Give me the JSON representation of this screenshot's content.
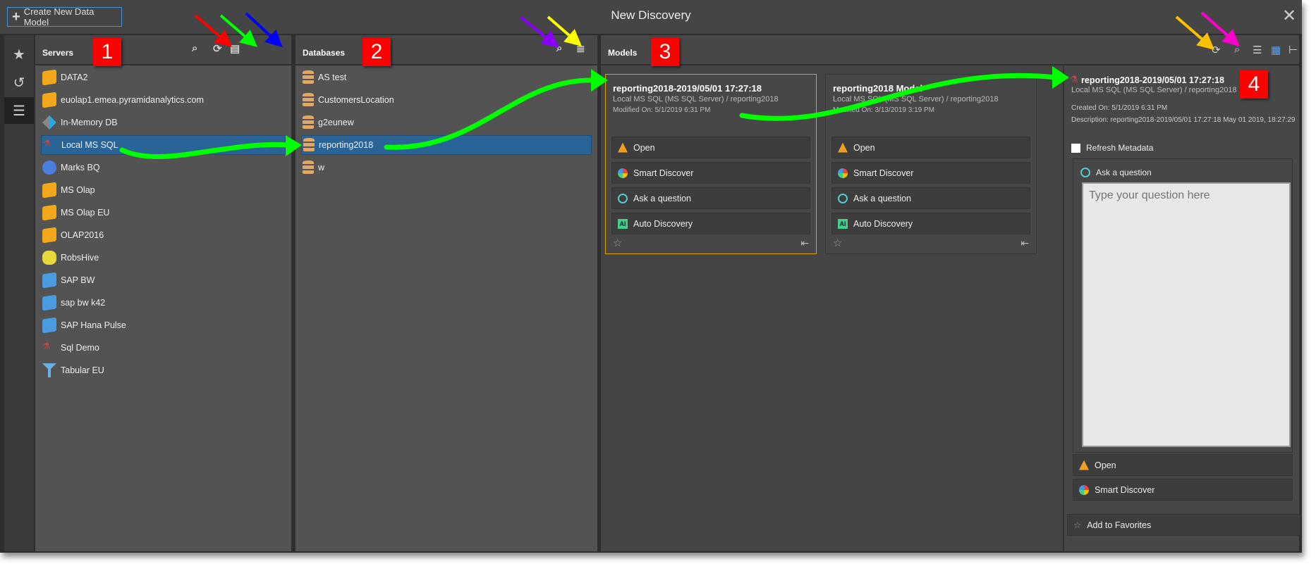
{
  "window": {
    "title": "New Discovery",
    "create_label": "Create New Data Model",
    "close": "✕"
  },
  "rail": [
    {
      "icon": "star-icon",
      "glyph": "★"
    },
    {
      "icon": "history-icon",
      "glyph": "↺"
    },
    {
      "icon": "database-icon",
      "glyph": "☰"
    }
  ],
  "servers": {
    "title": "Servers",
    "badge": "1",
    "items": [
      {
        "label": "DATA2",
        "icon": "cube-icon"
      },
      {
        "label": "euolap1.emea.pyramidanalytics.com",
        "icon": "cube-icon"
      },
      {
        "label": "In-Memory DB",
        "icon": "in-memory-icon"
      },
      {
        "label": "Local MS SQL",
        "icon": "sql-server-icon",
        "selected": true
      },
      {
        "label": "Marks BQ",
        "icon": "bigquery-icon"
      },
      {
        "label": "MS Olap",
        "icon": "cube-icon"
      },
      {
        "label": "MS Olap EU",
        "icon": "cube-icon"
      },
      {
        "label": "OLAP2016",
        "icon": "cube-icon"
      },
      {
        "label": "RobsHive",
        "icon": "hive-icon"
      },
      {
        "label": "SAP BW",
        "icon": "blue-cube-icon"
      },
      {
        "label": "sap bw k42",
        "icon": "blue-cube-icon"
      },
      {
        "label": "SAP Hana Pulse",
        "icon": "hana-icon"
      },
      {
        "label": "Sql Demo",
        "icon": "sql-server-icon"
      },
      {
        "label": "Tabular EU",
        "icon": "tabular-icon"
      }
    ]
  },
  "databases": {
    "title": "Databases",
    "badge": "2",
    "items": [
      {
        "label": "AS test"
      },
      {
        "label": "CustomersLocation"
      },
      {
        "label": "g2eunew"
      },
      {
        "label": "reporting2018",
        "selected": true
      },
      {
        "label": "w"
      }
    ]
  },
  "models": {
    "title": "Models",
    "badge": "3",
    "cards": [
      {
        "title": "reporting2018-2019/05/01 17:27:18",
        "source": "Local MS SQL (MS SQL Server) / reporting2018",
        "modified": "Modified On: 5/1/2019 6:31 PM",
        "selected": true
      },
      {
        "title": "reporting2018 Model",
        "source": "Local MS SQL (MS SQL Server) / reporting2018",
        "modified": "Modified On: 3/13/2019 3:19 PM"
      }
    ],
    "actions": [
      "Open",
      "Smart Discover",
      "Ask a question",
      "Auto Discovery"
    ]
  },
  "detail": {
    "badge": "4",
    "title": "reporting2018-2019/05/01 17:27:18",
    "source": "Local MS SQL (MS SQL Server) / reporting2018",
    "created": "Created On: 5/1/2019 6:31 PM",
    "description": "Description: reporting2018-2019/05/01 17:27:18 May 01 2019, 18:27:29",
    "refresh_label": "Refresh Metadata",
    "refresh_checked": false,
    "ask_label": "Ask a question",
    "ask_placeholder": "Type your question here",
    "open": "Open",
    "smart": "Smart Discover",
    "favorites": "Add to Favorites"
  },
  "annotation_colors": {
    "red": "#ff0000",
    "green": "#00ff00",
    "blue": "#0000ff",
    "purple": "#8a00ff",
    "yellow": "#ffff00",
    "orange": "#ffc000",
    "magenta": "#ff00cc",
    "badge": "#ff0000"
  }
}
